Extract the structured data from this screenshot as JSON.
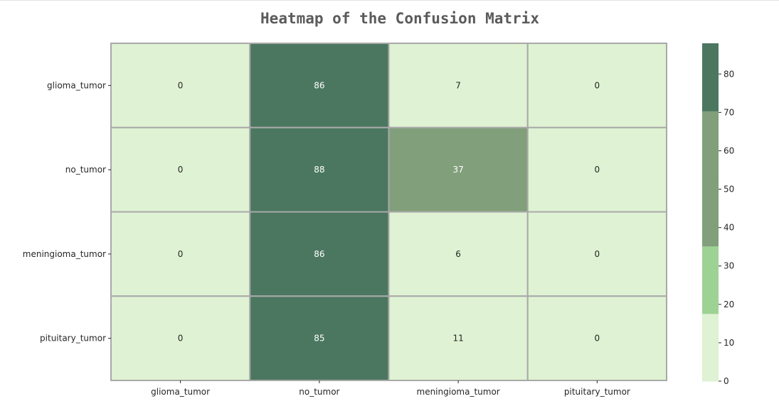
{
  "chart_data": {
    "type": "heatmap",
    "title": "Heatmap of the Confusion Matrix",
    "xlabel": "",
    "ylabel": "",
    "row_labels": [
      "glioma_tumor",
      "no_tumor",
      "meningioma_tumor",
      "pituitary_tumor"
    ],
    "col_labels": [
      "glioma_tumor",
      "no_tumor",
      "meningioma_tumor",
      "pituitary_tumor"
    ],
    "values": [
      [
        0,
        86,
        7,
        0
      ],
      [
        0,
        88,
        37,
        0
      ],
      [
        0,
        86,
        6,
        0
      ],
      [
        0,
        85,
        11,
        0
      ]
    ],
    "colorbar": {
      "range": [
        0,
        88
      ],
      "ticks": [
        0,
        10,
        20,
        30,
        40,
        50,
        60,
        70,
        80
      ],
      "colors": [
        "#dff2d3",
        "#9ed294",
        "#819f7a",
        "#819f7a",
        "#4b7760"
      ],
      "legend_placement": "right"
    },
    "grid_color": "#a9a9a9",
    "light_text_color": "#ffffff",
    "dark_text_color": "#262626"
  }
}
